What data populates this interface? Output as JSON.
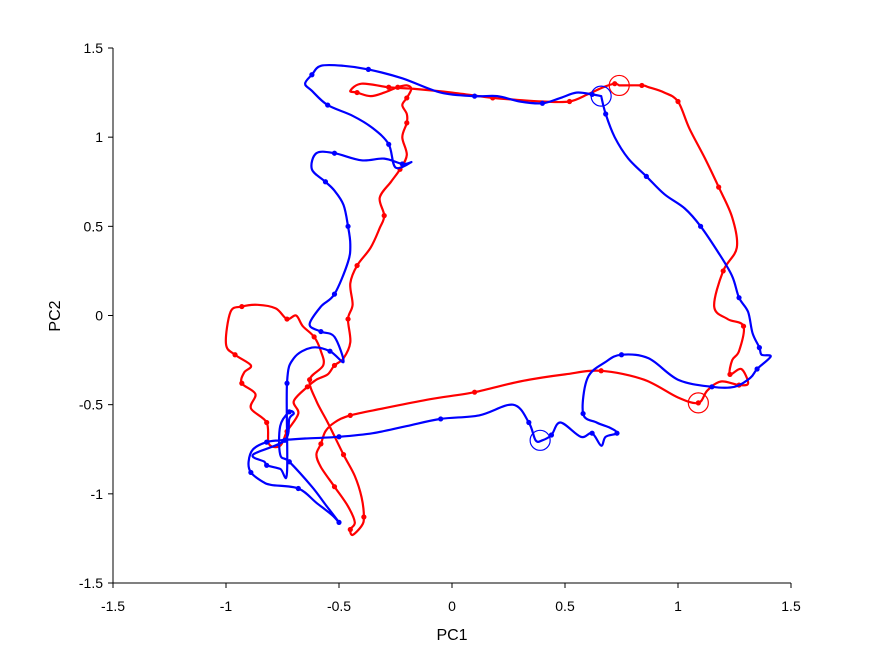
{
  "chart_data": {
    "type": "line",
    "xlabel": "PC1",
    "ylabel": "PC2",
    "xlim": [
      -1.5,
      1.5
    ],
    "ylim": [
      -1.5,
      1.5
    ],
    "xticks": [
      -1.5,
      -1,
      -0.5,
      0,
      0.5,
      1,
      1.5
    ],
    "yticks": [
      -1.5,
      -1,
      -0.5,
      0,
      0.5,
      1,
      1.5
    ],
    "grid": false,
    "series": [
      {
        "color": "#ff0000",
        "start_marker": [
          0.74,
          1.29
        ],
        "end_marker": [
          1.09,
          -0.49
        ],
        "x": [
          0.74,
          0.84,
          0.87,
          0.94,
          1.0,
          1.05,
          1.12,
          1.18,
          1.24,
          1.26,
          1.2,
          1.16,
          1.22,
          1.29,
          1.27,
          1.24,
          1.23,
          1.28,
          1.31,
          1.27,
          1.19,
          1.13,
          1.09,
          1.0,
          0.85,
          0.66,
          0.5,
          0.3,
          0.1,
          -0.1,
          -0.3,
          -0.45,
          -0.52,
          -0.56,
          -0.58,
          -0.6,
          -0.58,
          -0.52,
          -0.46,
          -0.43,
          -0.45,
          -0.44,
          -0.4,
          -0.39,
          -0.4,
          -0.43,
          -0.48,
          -0.55,
          -0.6,
          -0.63,
          -0.57,
          -0.58,
          -0.61,
          -0.66,
          -0.69,
          -0.73,
          -0.78,
          -0.86,
          -0.93,
          -0.98,
          -1.0,
          -0.96,
          -0.89,
          -0.92,
          -0.93,
          -0.87,
          -0.89,
          -0.82,
          -0.81,
          -0.76,
          -0.73,
          -0.68,
          -0.7,
          -0.64,
          -0.6,
          -0.55,
          -0.52,
          -0.48,
          -0.45,
          -0.46,
          -0.44,
          -0.45,
          -0.42,
          -0.36,
          -0.32,
          -0.3,
          -0.32,
          -0.27,
          -0.23,
          -0.2,
          -0.22,
          -0.2,
          -0.2,
          -0.22,
          -0.2,
          -0.18,
          -0.2,
          -0.24,
          -0.3,
          -0.36,
          -0.42,
          -0.45,
          -0.4,
          -0.28,
          -0.16,
          0.0,
          0.18,
          0.28,
          0.4,
          0.52,
          0.6,
          0.67,
          0.72,
          0.74
        ],
        "y": [
          1.29,
          1.29,
          1.28,
          1.25,
          1.2,
          1.05,
          0.88,
          0.72,
          0.55,
          0.38,
          0.25,
          0.05,
          -0.02,
          -0.06,
          -0.2,
          -0.25,
          -0.33,
          -0.3,
          -0.38,
          -0.39,
          -0.37,
          -0.42,
          -0.49,
          -0.46,
          -0.36,
          -0.31,
          -0.33,
          -0.37,
          -0.43,
          -0.47,
          -0.52,
          -0.56,
          -0.6,
          -0.65,
          -0.72,
          -0.78,
          -0.85,
          -0.96,
          -1.07,
          -1.16,
          -1.2,
          -1.23,
          -1.18,
          -1.13,
          -1.02,
          -0.9,
          -0.78,
          -0.6,
          -0.48,
          -0.36,
          -0.28,
          -0.2,
          -0.12,
          -0.06,
          0.0,
          -0.02,
          0.04,
          0.06,
          0.05,
          0.02,
          -0.16,
          -0.22,
          -0.28,
          -0.32,
          -0.38,
          -0.44,
          -0.52,
          -0.6,
          -0.72,
          -0.73,
          -0.65,
          -0.55,
          -0.48,
          -0.4,
          -0.36,
          -0.33,
          -0.28,
          -0.24,
          -0.15,
          -0.02,
          0.06,
          0.18,
          0.28,
          0.38,
          0.49,
          0.56,
          0.66,
          0.75,
          0.82,
          0.9,
          1.0,
          1.08,
          1.13,
          1.18,
          1.22,
          1.27,
          1.29,
          1.28,
          1.25,
          1.23,
          1.25,
          1.26,
          1.3,
          1.28,
          1.27,
          1.25,
          1.22,
          1.21,
          1.2,
          1.2,
          1.24,
          1.28,
          1.3,
          1.29
        ]
      },
      {
        "color": "#0000ff",
        "start_marker": [
          0.66,
          1.23
        ],
        "end_marker": [
          0.39,
          -0.7
        ],
        "x": [
          0.66,
          0.68,
          0.72,
          0.78,
          0.86,
          0.94,
          1.03,
          1.1,
          1.18,
          1.24,
          1.27,
          1.31,
          1.33,
          1.36,
          1.37,
          1.41,
          1.35,
          1.32,
          1.25,
          1.15,
          1.0,
          0.87,
          0.75,
          0.68,
          0.6,
          0.58,
          0.64,
          0.7,
          0.73,
          0.68,
          0.66,
          0.62,
          0.57,
          0.48,
          0.44,
          0.4,
          0.37,
          0.34,
          0.27,
          0.12,
          -0.05,
          -0.2,
          -0.35,
          -0.5,
          -0.65,
          -0.76,
          -0.82,
          -0.88,
          -0.9,
          -0.89,
          -0.84,
          -0.8,
          -0.68,
          -0.6,
          -0.53,
          -0.5,
          -0.56,
          -0.62,
          -0.72,
          -0.76,
          -0.76,
          -0.72,
          -0.7,
          -0.72,
          -0.74,
          -0.88,
          -0.83,
          -0.82,
          -0.76,
          -0.73,
          -0.73,
          -0.7,
          -0.62,
          -0.54,
          -0.48,
          -0.52,
          -0.58,
          -0.63,
          -0.58,
          -0.52,
          -0.46,
          -0.45,
          -0.46,
          -0.48,
          -0.52,
          -0.56,
          -0.62,
          -0.6,
          -0.52,
          -0.4,
          -0.3,
          -0.22,
          -0.18,
          -0.25,
          -0.28,
          -0.35,
          -0.44,
          -0.55,
          -0.62,
          -0.65,
          -0.62,
          -0.58,
          -0.48,
          -0.37,
          -0.22,
          -0.05,
          0.1,
          0.2,
          0.3,
          0.4,
          0.48,
          0.55,
          0.62,
          0.66
        ],
        "y": [
          1.23,
          1.13,
          1.0,
          0.88,
          0.78,
          0.68,
          0.6,
          0.5,
          0.35,
          0.22,
          0.1,
          0.02,
          -0.1,
          -0.18,
          -0.22,
          -0.23,
          -0.3,
          -0.35,
          -0.4,
          -0.4,
          -0.36,
          -0.24,
          -0.22,
          -0.26,
          -0.35,
          -0.55,
          -0.6,
          -0.63,
          -0.66,
          -0.68,
          -0.73,
          -0.66,
          -0.68,
          -0.6,
          -0.67,
          -0.7,
          -0.7,
          -0.6,
          -0.5,
          -0.56,
          -0.58,
          -0.62,
          -0.66,
          -0.68,
          -0.69,
          -0.7,
          -0.71,
          -0.75,
          -0.82,
          -0.88,
          -0.93,
          -0.95,
          -0.97,
          -1.05,
          -1.12,
          -1.16,
          -1.06,
          -0.96,
          -0.82,
          -0.78,
          -0.62,
          -0.54,
          -0.55,
          -0.58,
          -0.7,
          -0.78,
          -0.82,
          -0.84,
          -0.86,
          -0.88,
          -0.38,
          -0.24,
          -0.18,
          -0.2,
          -0.26,
          -0.12,
          -0.09,
          -0.05,
          0.05,
          0.12,
          0.3,
          0.4,
          0.5,
          0.62,
          0.7,
          0.75,
          0.82,
          0.91,
          0.91,
          0.87,
          0.88,
          0.85,
          0.86,
          0.83,
          0.96,
          1.05,
          1.12,
          1.18,
          1.26,
          1.3,
          1.35,
          1.4,
          1.4,
          1.38,
          1.33,
          1.25,
          1.23,
          1.23,
          1.2,
          1.19,
          1.22,
          1.25,
          1.24,
          1.23
        ]
      }
    ]
  }
}
